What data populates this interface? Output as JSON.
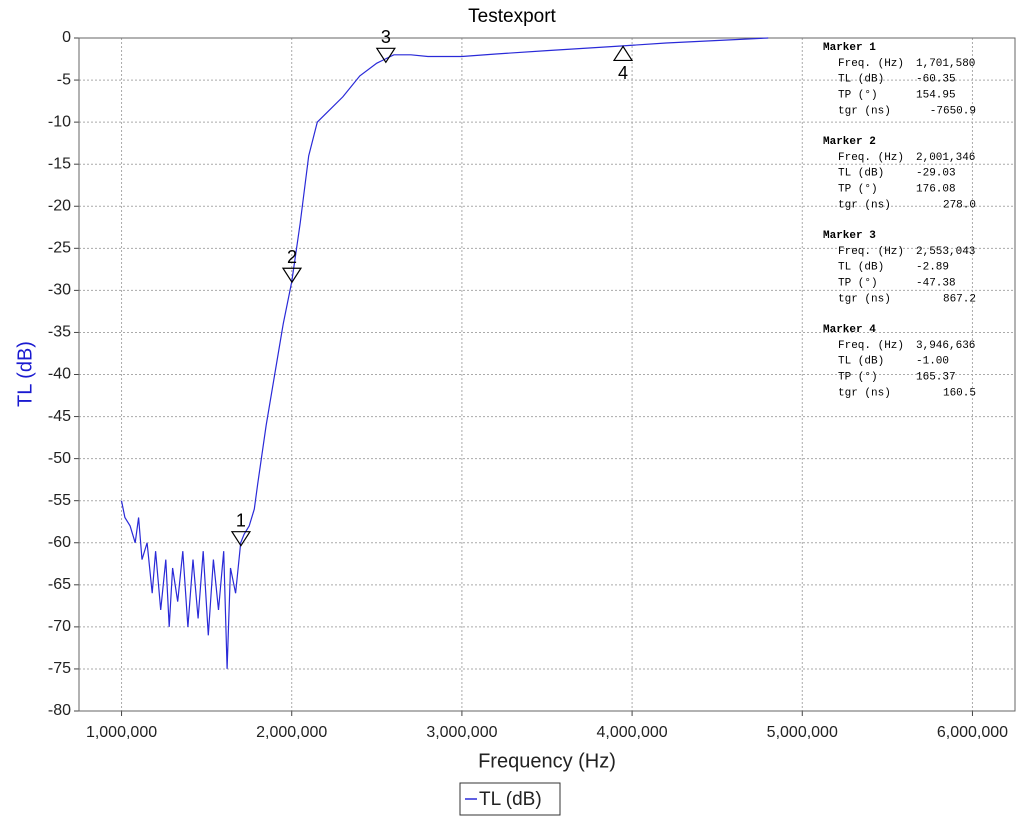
{
  "chart_data": {
    "type": "line",
    "title": "Testexport",
    "x_label": "Frequency (Hz)",
    "y_label": "TL (dB)",
    "xlim": [
      750000,
      6250000
    ],
    "xticks": [
      {
        "value": 1000000,
        "label": "1,000,000"
      },
      {
        "value": 2000000,
        "label": "2,000,000"
      },
      {
        "value": 3000000,
        "label": "3,000,000"
      },
      {
        "value": 4000000,
        "label": "4,000,000"
      },
      {
        "value": 5000000,
        "label": "5,000,000"
      },
      {
        "value": 6000000,
        "label": "6,000,000"
      }
    ],
    "ylim": [
      -80,
      0
    ],
    "yticks": [
      -80,
      -75,
      -70,
      -65,
      -60,
      -55,
      -50,
      -45,
      -40,
      -35,
      -30,
      -25,
      -20,
      -15,
      -10,
      -5,
      0
    ],
    "grid": true,
    "legend": "bottom",
    "x": [
      1000000,
      1020000,
      1050000,
      1080000,
      1100000,
      1120000,
      1150000,
      1180000,
      1200000,
      1230000,
      1260000,
      1280000,
      1300000,
      1330000,
      1360000,
      1390000,
      1420000,
      1450000,
      1480000,
      1510000,
      1540000,
      1570000,
      1600000,
      1620000,
      1640000,
      1670000,
      1700000,
      1720000,
      1750000,
      1780000,
      1800000,
      1850000,
      1900000,
      1950000,
      2000000,
      2050000,
      2100000,
      2150000,
      2200000,
      2300000,
      2400000,
      2500000,
      2600000,
      2700000,
      2800000,
      3000000,
      3200000,
      3500000,
      3900000,
      4200000,
      4500000,
      4800000
    ],
    "series": [
      {
        "name": "TL (dB)",
        "color": "#2a2ad8",
        "values": [
          -55,
          -57,
          -58,
          -60,
          -57,
          -62,
          -60,
          -66,
          -61,
          -68,
          -62,
          -70,
          -63,
          -67,
          -61,
          -70,
          -62,
          -69,
          -61,
          -71,
          -62,
          -68,
          -61,
          -75,
          -63,
          -66,
          -60,
          -59,
          -58,
          -56,
          -53,
          -46,
          -40,
          -34,
          -29,
          -22,
          -14,
          -10,
          -9,
          -7,
          -4.5,
          -3,
          -2,
          -2,
          -2.2,
          -2.2,
          -1.9,
          -1.5,
          -1,
          -0.6,
          -0.3,
          0
        ]
      }
    ],
    "marker_fields": [
      "Freq. (Hz)",
      "TL (dB)",
      "TP (°)",
      "tgr (ns)"
    ],
    "markers": [
      {
        "label": "1",
        "title": "Marker 1",
        "pointer": "down",
        "freq": {
          "value": 1701580,
          "label": "1,701,580"
        },
        "tl": -60.35,
        "tp": 154.95,
        "tgr": -7650.9
      },
      {
        "label": "2",
        "title": "Marker 2",
        "pointer": "down",
        "freq": {
          "value": 2001346,
          "label": "2,001,346"
        },
        "tl": -29.03,
        "tp": 176.08,
        "tgr": {
          "value": 278,
          "label": "278.0"
        }
      },
      {
        "label": "3",
        "title": "Marker 3",
        "pointer": "down",
        "freq": {
          "value": 2553043,
          "label": "2,553,043"
        },
        "tl": -2.89,
        "tp": -47.38,
        "tgr": 867.2
      },
      {
        "label": "4",
        "title": "Marker 4",
        "pointer": "up",
        "freq": {
          "value": 3946636,
          "label": "3,946,636"
        },
        "tl": {
          "value": -1,
          "label": "-1.00"
        },
        "tp": 165.37,
        "tgr": 160.5
      }
    ]
  }
}
